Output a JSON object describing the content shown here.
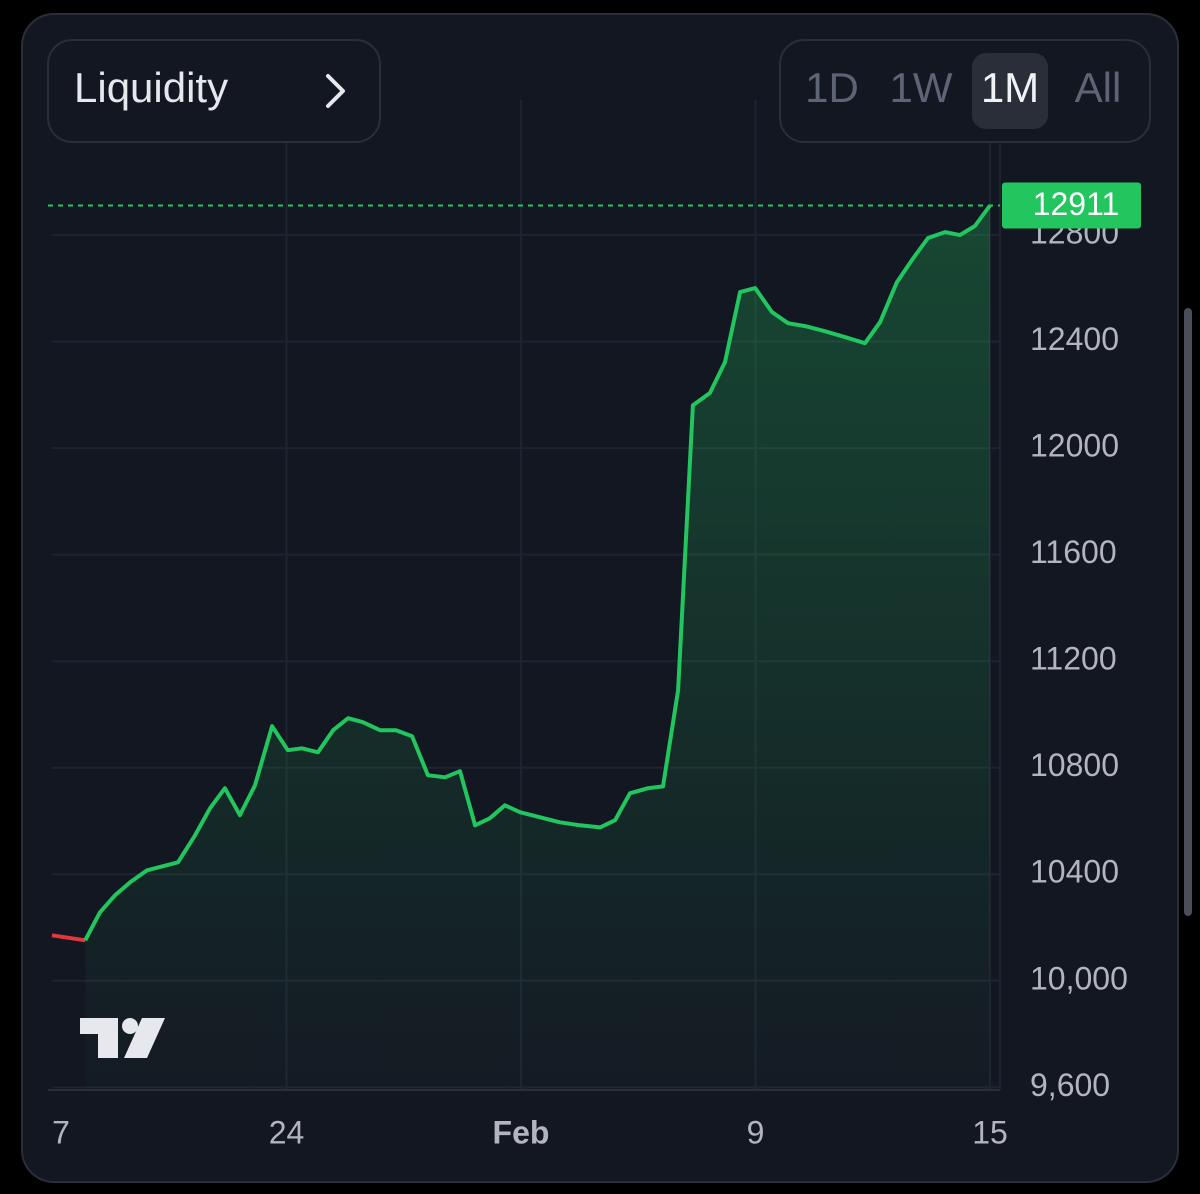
{
  "header": {
    "title": "Liquidity"
  },
  "range_buttons": [
    "1D",
    "1W",
    "1M",
    "All"
  ],
  "selected_range": "1M",
  "chart_data": {
    "type": "line",
    "xlim": [
      0,
      28
    ],
    "xticks": [
      {
        "value": 0.27,
        "label": "7"
      },
      {
        "value": 7,
        "label": "24"
      },
      {
        "value": 14,
        "label": "Feb"
      },
      {
        "value": 21,
        "label": "9"
      },
      {
        "value": 28,
        "label": "15"
      }
    ],
    "ylim": [
      9590,
      13140
    ],
    "yticks": [
      {
        "value": 9600,
        "label": "9,600"
      },
      {
        "value": 10000,
        "label": "10,000"
      },
      10400,
      10800,
      11200,
      11600,
      12000,
      12400,
      12800
    ],
    "grid": true,
    "series": [
      {
        "color": "#e5353e",
        "x": [
          0,
          0.99
        ],
        "values": [
          10171,
          10152
        ]
      },
      {
        "color": "#22c55e",
        "area": true,
        "x": [
          0.99,
          1.43,
          1.88,
          2.33,
          2.84,
          3.76,
          4.27,
          4.72,
          5.16,
          5.61,
          6.06,
          6.57,
          7.04,
          7.46,
          7.94,
          8.39,
          8.84,
          9.28,
          9.79,
          10.27,
          10.75,
          11.22,
          11.73,
          12.18,
          12.63,
          13.07,
          13.52,
          13.97,
          14.57,
          15.16,
          15.76,
          16.36,
          16.81,
          17.25,
          17.79,
          18.24,
          18.69,
          19.13,
          19.64,
          20.09,
          20.54,
          20.99,
          21.49,
          21.97,
          22.48,
          23.07,
          23.67,
          24.27,
          24.72,
          25.22,
          25.67,
          26.15,
          26.66,
          27.1,
          27.55,
          28
        ],
        "values": [
          10152,
          10257,
          10321,
          10370,
          10415,
          10445,
          10546,
          10648,
          10723,
          10622,
          10734,
          10956,
          10866,
          10873,
          10858,
          10941,
          10986,
          10971,
          10941,
          10941,
          10918,
          10772,
          10764,
          10787,
          10584,
          10610,
          10659,
          10633,
          10614,
          10595,
          10584,
          10576,
          10603,
          10704,
          10723,
          10730,
          11091,
          12161,
          12207,
          12323,
          12586,
          12601,
          12511,
          12469,
          12458,
          12439,
          12417,
          12394,
          12473,
          12623,
          12706,
          12789,
          12811,
          12800,
          12834,
          12911
        ]
      }
    ]
  }
}
